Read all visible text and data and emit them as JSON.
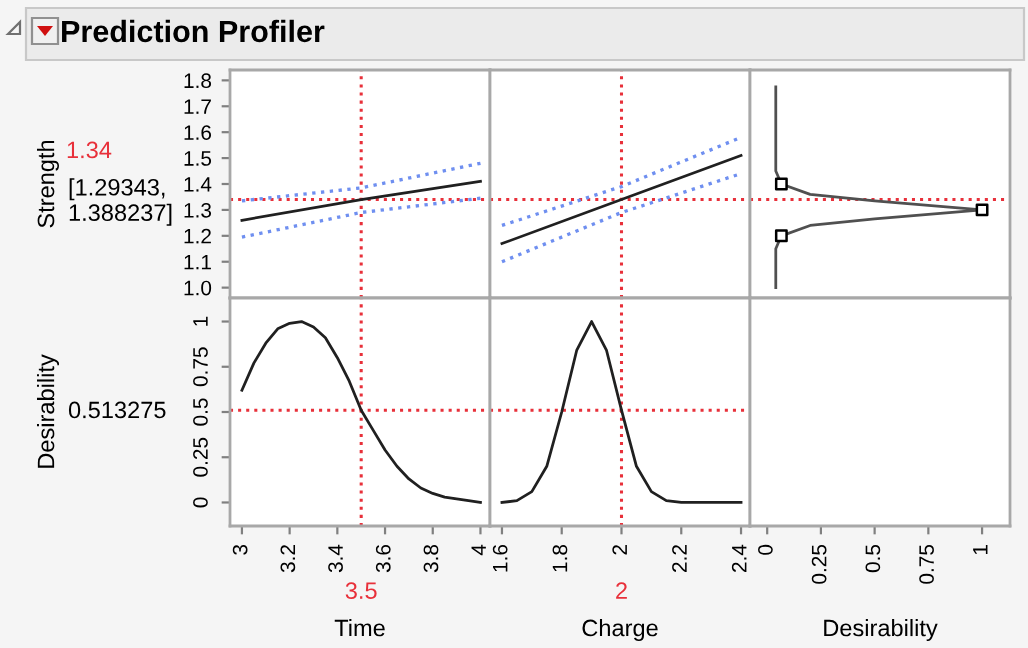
{
  "chart_data": [
    {
      "type": "line",
      "title": "Prediction Profiler",
      "ylabel": "Strength",
      "annotations": [
        "[1.29343, 1.388237]"
      ],
      "xlim": [
        2.95,
        4.04
      ],
      "ylim": [
        0.96,
        1.84
      ],
      "yticks": [
        {
          "value": 1.0,
          "label": "1.0"
        },
        1.1,
        1.2,
        1.3,
        1.4,
        1.5,
        1.6,
        1.7,
        1.8
      ],
      "tick_labels": "y",
      "grid": false,
      "series": [
        {
          "color": "#202020",
          "line_style": "solid",
          "x": [
            3,
            3.5,
            4
          ],
          "values": [
            1.26,
            1.34,
            1.41
          ]
        },
        {
          "color": "#6f8ff0",
          "line_style": "dotted",
          "x": [
            3,
            3.5,
            4
          ],
          "values": [
            1.335,
            1.385,
            1.48
          ]
        },
        {
          "color": "#6f8ff0",
          "line_style": "dotted",
          "x": [
            3,
            3.5,
            4
          ],
          "values": [
            1.195,
            1.29,
            1.345
          ]
        }
      ],
      "ref_lines": [
        {
          "axis": "x",
          "value": 3.5,
          "color": "#e8303a",
          "line_style": "dotted"
        },
        {
          "axis": "y",
          "value": 1.34,
          "label": "1.34",
          "color": "#e8303a",
          "line_style": "dotted"
        }
      ]
    },
    {
      "type": "line",
      "xlim": [
        1.56,
        2.43
      ],
      "ylim": [
        0.96,
        1.84
      ],
      "tick_labels": false,
      "grid": false,
      "series": [
        {
          "color": "#202020",
          "line_style": "solid",
          "x": [
            1.6,
            2,
            2.4
          ],
          "values": [
            1.17,
            1.34,
            1.51
          ]
        },
        {
          "color": "#6f8ff0",
          "line_style": "dotted",
          "x": [
            1.6,
            2,
            2.4
          ],
          "values": [
            1.24,
            1.39,
            1.58
          ]
        },
        {
          "color": "#6f8ff0",
          "line_style": "dotted",
          "x": [
            1.6,
            2,
            2.4
          ],
          "values": [
            1.1,
            1.29,
            1.44
          ]
        }
      ],
      "ref_lines": [
        {
          "axis": "x",
          "value": 2,
          "color": "#e8303a",
          "line_style": "dotted"
        },
        {
          "axis": "y",
          "value": 1.34,
          "color": "#e8303a",
          "line_style": "dotted"
        }
      ]
    },
    {
      "type": "line",
      "xlim": [
        -0.08,
        1.13
      ],
      "ylim": [
        0.96,
        1.84
      ],
      "tick_labels": false,
      "grid": false,
      "series": [
        {
          "color": "#505050",
          "line_style": "solid",
          "x": [
            0.04,
            0.04,
            0.066,
            0.2,
            0.5,
            1.0,
            0.5,
            0.2,
            0.066,
            0.04,
            0.04
          ],
          "values": [
            1.775,
            1.45,
            1.4,
            1.36,
            1.335,
            1.3,
            1.265,
            1.24,
            1.2,
            1.15,
            1.0
          ]
        },
        {
          "type": "scatter",
          "color": "#000000",
          "marker": "square",
          "x": [
            0.066,
            1.0,
            0.066
          ],
          "values": [
            1.4,
            1.3,
            1.2
          ]
        }
      ],
      "ref_lines": [
        {
          "axis": "y",
          "value": 1.34,
          "color": "#e8303a",
          "line_style": "dotted"
        }
      ]
    },
    {
      "type": "line",
      "ylabel": "Desirability",
      "xlabel": "Time",
      "annotations": [
        "0.513275"
      ],
      "xlim": [
        2.95,
        4.04
      ],
      "xticks": [
        3,
        3.2,
        3.4,
        3.6,
        3.8,
        4
      ],
      "ylim": [
        -0.13,
        1.13
      ],
      "yticks": [
        0,
        0.25,
        0.5,
        0.75,
        1
      ],
      "grid": false,
      "series": [
        {
          "color": "#202020",
          "line_style": "solid",
          "x": [
            3,
            3.05,
            3.1,
            3.15,
            3.2,
            3.25,
            3.3,
            3.35,
            3.4,
            3.45,
            3.5,
            3.55,
            3.6,
            3.65,
            3.7,
            3.75,
            3.8,
            3.85,
            3.9,
            3.95,
            4
          ],
          "values": [
            0.62,
            0.77,
            0.88,
            0.96,
            0.99,
            1.0,
            0.97,
            0.91,
            0.8,
            0.67,
            0.51,
            0.4,
            0.29,
            0.2,
            0.13,
            0.08,
            0.05,
            0.03,
            0.02,
            0.01,
            0
          ]
        }
      ],
      "ref_lines": [
        {
          "axis": "x",
          "value": 3.5,
          "label": "3.5",
          "color": "#e8303a",
          "line_style": "dotted"
        },
        {
          "axis": "y",
          "value": 0.51,
          "color": "#e8303a",
          "line_style": "dotted"
        }
      ]
    },
    {
      "type": "line",
      "xlabel": "Charge",
      "xlim": [
        1.56,
        2.43
      ],
      "xticks": [
        1.6,
        1.8,
        2,
        2.2,
        2.4
      ],
      "ylim": [
        -0.13,
        1.13
      ],
      "tick_labels": "x",
      "grid": false,
      "series": [
        {
          "color": "#202020",
          "line_style": "solid",
          "x": [
            1.6,
            1.65,
            1.7,
            1.75,
            1.8,
            1.85,
            1.9,
            1.95,
            2.0,
            2.05,
            2.1,
            2.15,
            2.2,
            2.4
          ],
          "values": [
            0,
            0.01,
            0.06,
            0.2,
            0.5,
            0.84,
            1.0,
            0.84,
            0.51,
            0.2,
            0.06,
            0.01,
            0,
            0
          ]
        }
      ],
      "ref_lines": [
        {
          "axis": "x",
          "value": 2,
          "label": "2",
          "color": "#e8303a",
          "line_style": "dotted"
        },
        {
          "axis": "y",
          "value": 0.51,
          "color": "#e8303a",
          "line_style": "dotted"
        }
      ]
    },
    {
      "type": "line",
      "xlabel": "Desirability",
      "xlim": [
        -0.08,
        1.13
      ],
      "xticks": [
        0,
        0.25,
        0.5,
        0.75,
        1
      ],
      "ylim": [
        -0.13,
        1.13
      ],
      "tick_labels": "x",
      "grid": false
    }
  ]
}
